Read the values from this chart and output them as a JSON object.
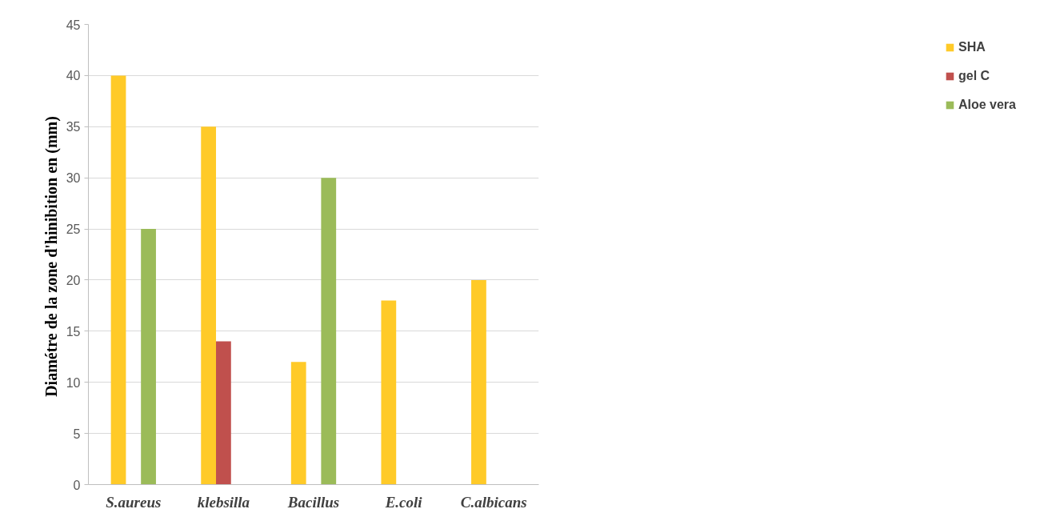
{
  "chart_data": {
    "type": "bar",
    "ylabel": "Diamétre de la zone d'hinibition  en (mm)",
    "categories": [
      "S.aureus",
      "klebsilla",
      "Bacillus",
      "E.coli",
      "C.albicans"
    ],
    "series": [
      {
        "name": "SHA",
        "color": "#ffca28",
        "values": [
          40,
          35,
          12,
          18,
          20
        ]
      },
      {
        "name": "gel C",
        "color": "#c0504d",
        "values": [
          0,
          14,
          0,
          0,
          0
        ]
      },
      {
        "name": "Aloe vera",
        "color": "#9bbb59",
        "values": [
          25,
          0,
          30,
          0,
          0
        ]
      }
    ],
    "ylim": [
      0,
      45
    ],
    "yticks": [
      0,
      5,
      10,
      15,
      20,
      25,
      30,
      35,
      40,
      45
    ],
    "grid": "y",
    "legend": "right"
  }
}
